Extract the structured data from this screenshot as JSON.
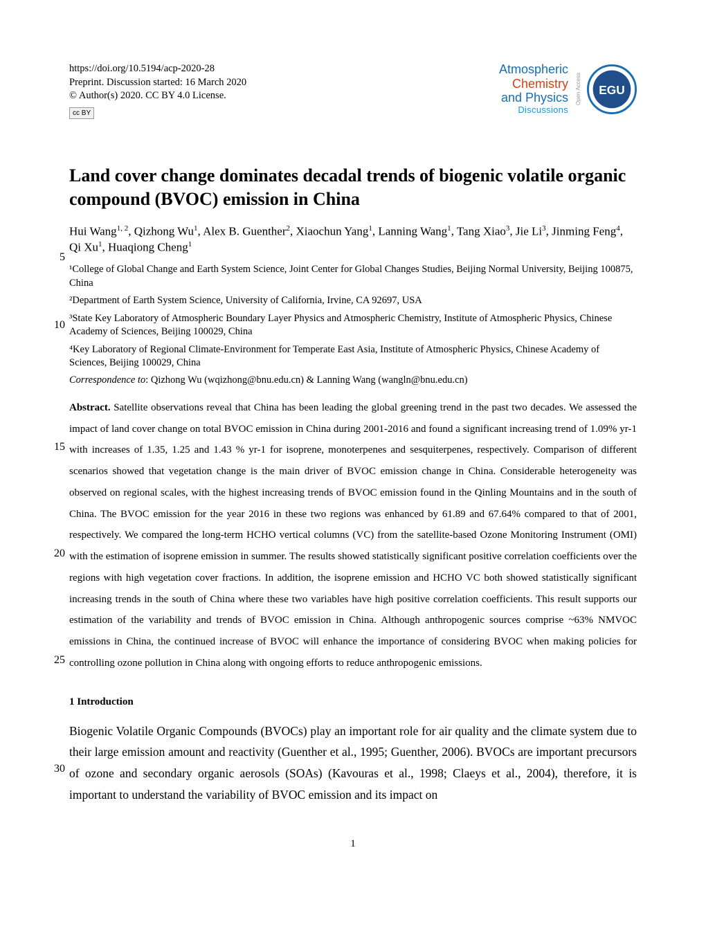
{
  "header": {
    "doi": "https://doi.org/10.5194/acp-2020-28",
    "preprint_line": "Preprint. Discussion started: 16 March 2020",
    "copyright_line": "© Author(s) 2020. CC BY 4.0 License.",
    "cc_badge": "cc  BY",
    "journal": {
      "line1": "Atmospheric",
      "line2": "Chemistry",
      "line3": "and Physics",
      "line4": "Discussions",
      "open_access": "Open Access",
      "egu_text": "EGU"
    },
    "colors": {
      "atmos": "#1a6db3",
      "chem": "#d64214",
      "phys": "#1a6db3",
      "disc": "#1796e0",
      "egu_ring": "#1a6db3",
      "egu_inner": "#204e8a"
    }
  },
  "title": "Land cover change dominates decadal trends of biogenic volatile organic compound (BVOC) emission in China",
  "authors_html": "Hui Wang<sup>1, 2</sup>, Qizhong Wu<sup>1</sup>, Alex B. Guenther<sup>2</sup>, Xiaochun Yang<sup>1</sup>, Lanning Wang<sup>1</sup>, Tang Xiao<sup>3</sup>, Jie Li<sup>3</sup>, Jinming Feng<sup>4</sup>, Qi Xu<sup>1</sup>, Huaqiong Cheng<sup>1</sup>",
  "affiliations": [
    "¹College of Global Change and Earth System Science, Joint Center for Global Changes Studies, Beijing Normal University, Beijing 100875, China",
    "²Department of Earth System Science, University of California, Irvine, CA 92697, USA",
    "³State Key Laboratory of Atmospheric Boundary Layer Physics and Atmospheric Chemistry, Institute of Atmospheric Physics, Chinese Academy of Sciences, Beijing 100029, China",
    "⁴Key Laboratory of Regional Climate-Environment for Temperate East Asia, Institute of Atmospheric Physics, Chinese Academy of Sciences, Beijing 100029, China"
  ],
  "correspondence": {
    "label": "Correspondence to",
    "text": ": Qizhong Wu (wqizhong@bnu.edu.cn) & Lanning Wang (wangln@bnu.edu.cn)"
  },
  "abstract": {
    "label": "Abstract.",
    "text": " Satellite observations reveal that China has been leading the global greening trend in the past two decades. We assessed the impact of land cover change on total BVOC emission in China during 2001-2016 and found a significant increasing trend of 1.09% yr-1 with increases of 1.35, 1.25 and 1.43 % yr-1 for isoprene, monoterpenes and sesquiterpenes, respectively. Comparison of different scenarios showed that vegetation change is the main driver of BVOC emission change in China. Considerable heterogeneity was observed on regional scales, with the highest increasing trends of BVOC emission found in the Qinling Mountains and in the south of China. The BVOC emission for the year 2016 in these two regions was enhanced by 61.89 and 67.64% compared to that of 2001, respectively. We compared the long-term HCHO vertical columns (VC) from the satellite-based Ozone Monitoring Instrument (OMI) with the estimation of isoprene emission in summer. The results showed statistically significant positive correlation coefficients over the regions with high vegetation cover fractions. In addition, the isoprene emission and HCHO VC both showed statistically significant increasing trends in the south of China where these two variables have high positive correlation coefficients. This result supports our estimation of the variability and trends of BVOC emission in China. Although anthropogenic sources comprise ~63% NMVOC emissions in China, the continued increase of BVOC will enhance the importance of considering BVOC when making policies for controlling ozone pollution in China along with ongoing efforts to reduce anthropogenic emissions."
  },
  "section1": {
    "heading": "1 Introduction",
    "body": "Biogenic Volatile Organic Compounds (BVOCs) play an important role for air quality and the climate system due to their large emission amount and reactivity (Guenther et al., 1995; Guenther, 2006). BVOCs are important precursors of ozone and secondary organic aerosols (SOAs) (Kavouras et al., 1998; Claeys et al., 2004), therefore, it is important to understand the variability of BVOC emission and its impact on"
  },
  "line_numbers": {
    "ln5": "5",
    "ln10": "10",
    "ln15": "15",
    "ln20": "20",
    "ln25": "25",
    "ln30": "30"
  },
  "page_number": "1"
}
